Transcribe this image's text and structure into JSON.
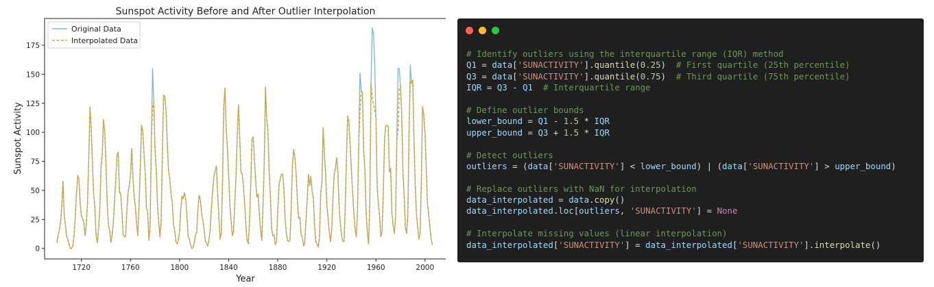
{
  "chart_data": {
    "type": "line",
    "title": "Sunspot Activity Before and After Outlier Interpolation",
    "xlabel": "Year",
    "ylabel": "Sunspot Activity",
    "xlim": [
      1690,
      2018
    ],
    "ylim": [
      -9,
      198
    ],
    "xticks": [
      1720,
      1760,
      1800,
      1840,
      1880,
      1920,
      1960,
      2000
    ],
    "yticks": [
      0,
      25,
      50,
      75,
      100,
      125,
      150,
      175
    ],
    "grid": false,
    "legend_position": "top-left",
    "x_start": 1700,
    "series": [
      {
        "name": "Original Data",
        "color": "#7fb3d5",
        "dash": "solid",
        "values": [
          5,
          11,
          16,
          23,
          36,
          58,
          29,
          20,
          10,
          8,
          3,
          0,
          0,
          2,
          11,
          27,
          47,
          63,
          60,
          39,
          28,
          26,
          22,
          11,
          21,
          40,
          78,
          122,
          103,
          73,
          47,
          35,
          11,
          5,
          16,
          34,
          70,
          81,
          111,
          101,
          73,
          40,
          20,
          16,
          5,
          11,
          22,
          40,
          60,
          81,
          83,
          48,
          48,
          31,
          12,
          10,
          10,
          32,
          48,
          54,
          63,
          86,
          61,
          45,
          36,
          21,
          11,
          38,
          70,
          106,
          101,
          82,
          66,
          35,
          31,
          7,
          20,
          93,
          155,
          126,
          85,
          68,
          38,
          23,
          10,
          24,
          83,
          132,
          131,
          118,
          90,
          67,
          60,
          47,
          41,
          21,
          16,
          6,
          4,
          7,
          15,
          34,
          45,
          43,
          48,
          42,
          28,
          10,
          8,
          3,
          0,
          1,
          5,
          12,
          14,
          35,
          46,
          41,
          30,
          24,
          16,
          7,
          4,
          2,
          8,
          17,
          36,
          50,
          62,
          67,
          71,
          48,
          28,
          8,
          13,
          57,
          122,
          138,
          103,
          86,
          63,
          37,
          24,
          11,
          15,
          40,
          62,
          98,
          124,
          96,
          66,
          64,
          54,
          39,
          21,
          7,
          4,
          23,
          55,
          94,
          96,
          77,
          59,
          44,
          47,
          30,
          16,
          7,
          37,
          74,
          139,
          111,
          102,
          66,
          45,
          17,
          11,
          12,
          3,
          6,
          32,
          54,
          60,
          64,
          64,
          52,
          25,
          13,
          7,
          6,
          7,
          36,
          73,
          85,
          78,
          64,
          42,
          26,
          27,
          12,
          10,
          2,
          5,
          24,
          42,
          64,
          54,
          62,
          49,
          44,
          19,
          6,
          4,
          1,
          10,
          47,
          57,
          104,
          81,
          64,
          38,
          26,
          14,
          6,
          17,
          44,
          64,
          69,
          78,
          65,
          36,
          21,
          11,
          6,
          6,
          36,
          80,
          114,
          109,
          89,
          68,
          48,
          31,
          16,
          10,
          33,
          92,
          151,
          136,
          134,
          84,
          69,
          31,
          14,
          4,
          38,
          142,
          190,
          185,
          159,
          112,
          54,
          38,
          28,
          10,
          15,
          47,
          94,
          106,
          106,
          105,
          66,
          69,
          31,
          20,
          13,
          27,
          93,
          155,
          155,
          140,
          116,
          66,
          46,
          18,
          13,
          29,
          100,
          158,
          142,
          145,
          94,
          54,
          30,
          18,
          8,
          13,
          57,
          122,
          115,
          99,
          68,
          38,
          29,
          18,
          8,
          3
        ]
      },
      {
        "name": "Interpolated Data",
        "color": "#e6a019",
        "dash": "dashed",
        "values": [
          5,
          11,
          16,
          23,
          36,
          58,
          29,
          20,
          10,
          8,
          3,
          0,
          0,
          2,
          11,
          27,
          47,
          63,
          60,
          39,
          28,
          26,
          22,
          11,
          21,
          40,
          78,
          122,
          103,
          73,
          47,
          35,
          11,
          5,
          16,
          34,
          70,
          81,
          111,
          101,
          73,
          40,
          20,
          16,
          5,
          11,
          22,
          40,
          60,
          81,
          83,
          48,
          48,
          31,
          12,
          10,
          10,
          32,
          48,
          54,
          63,
          86,
          61,
          45,
          36,
          21,
          11,
          38,
          70,
          106,
          101,
          82,
          66,
          35,
          31,
          7,
          20,
          93,
          121,
          126,
          85,
          68,
          38,
          23,
          10,
          24,
          83,
          132,
          131,
          118,
          90,
          67,
          60,
          47,
          41,
          21,
          16,
          6,
          4,
          7,
          15,
          34,
          45,
          43,
          48,
          42,
          28,
          10,
          8,
          3,
          0,
          1,
          5,
          12,
          14,
          35,
          46,
          41,
          30,
          24,
          16,
          7,
          4,
          2,
          8,
          17,
          36,
          50,
          62,
          67,
          71,
          48,
          28,
          8,
          13,
          57,
          122,
          138,
          103,
          86,
          63,
          37,
          24,
          11,
          15,
          40,
          62,
          98,
          124,
          96,
          66,
          64,
          54,
          39,
          21,
          7,
          4,
          23,
          55,
          94,
          96,
          77,
          59,
          44,
          47,
          30,
          16,
          7,
          37,
          74,
          139,
          111,
          102,
          66,
          45,
          17,
          11,
          12,
          3,
          6,
          32,
          54,
          60,
          64,
          64,
          52,
          25,
          13,
          7,
          6,
          7,
          36,
          73,
          85,
          78,
          64,
          42,
          26,
          27,
          12,
          10,
          2,
          5,
          24,
          42,
          64,
          54,
          62,
          49,
          44,
          19,
          6,
          4,
          1,
          10,
          47,
          57,
          104,
          81,
          64,
          38,
          26,
          14,
          6,
          17,
          44,
          64,
          69,
          78,
          65,
          36,
          21,
          11,
          6,
          6,
          36,
          80,
          114,
          109,
          89,
          68,
          48,
          31,
          16,
          10,
          33,
          92,
          118,
          136,
          134,
          84,
          69,
          31,
          14,
          4,
          38,
          142,
          128,
          125,
          120,
          112,
          54,
          38,
          28,
          10,
          15,
          47,
          94,
          106,
          106,
          105,
          66,
          69,
          31,
          20,
          13,
          27,
          93,
          102,
          138,
          140,
          116,
          66,
          46,
          18,
          13,
          29,
          100,
          144,
          142,
          145,
          94,
          54,
          30,
          18,
          8,
          13,
          57,
          122,
          115,
          99,
          68,
          38,
          29,
          18,
          8,
          3
        ]
      }
    ]
  },
  "code_panel": {
    "dot_colors": [
      "#ff5f56",
      "#ffbd2e",
      "#27c93f"
    ],
    "lines": [
      [
        [
          "comment",
          "# Identify outliers using the interquartile range (IQR) method"
        ]
      ],
      [
        [
          "var",
          "Q1"
        ],
        [
          "op",
          " = "
        ],
        [
          "var",
          "data"
        ],
        [
          "op",
          "["
        ],
        [
          "str",
          "'SUNACTIVITY'"
        ],
        [
          "op",
          "]."
        ],
        [
          "fn",
          "quantile"
        ],
        [
          "op",
          "("
        ],
        [
          "num",
          "0.25"
        ],
        [
          "op",
          ")  "
        ],
        [
          "comment",
          "# First quartile (25th percentile)"
        ]
      ],
      [
        [
          "var",
          "Q3"
        ],
        [
          "op",
          " = "
        ],
        [
          "var",
          "data"
        ],
        [
          "op",
          "["
        ],
        [
          "str",
          "'SUNACTIVITY'"
        ],
        [
          "op",
          "]."
        ],
        [
          "fn",
          "quantile"
        ],
        [
          "op",
          "("
        ],
        [
          "num",
          "0.75"
        ],
        [
          "op",
          ")  "
        ],
        [
          "comment",
          "# Third quartile (75th percentile)"
        ]
      ],
      [
        [
          "var",
          "IQR"
        ],
        [
          "op",
          " = "
        ],
        [
          "var",
          "Q3"
        ],
        [
          "op",
          " - "
        ],
        [
          "var",
          "Q1"
        ],
        [
          "op",
          "  "
        ],
        [
          "comment",
          "# Interquartile range"
        ]
      ],
      [],
      [
        [
          "comment",
          "# Define outlier bounds"
        ]
      ],
      [
        [
          "var",
          "lower_bound"
        ],
        [
          "op",
          " = "
        ],
        [
          "var",
          "Q1"
        ],
        [
          "op",
          " - "
        ],
        [
          "num",
          "1.5"
        ],
        [
          "op",
          " * "
        ],
        [
          "var",
          "IQR"
        ]
      ],
      [
        [
          "var",
          "upper_bound"
        ],
        [
          "op",
          " = "
        ],
        [
          "var",
          "Q3"
        ],
        [
          "op",
          " + "
        ],
        [
          "num",
          "1.5"
        ],
        [
          "op",
          " * "
        ],
        [
          "var",
          "IQR"
        ]
      ],
      [],
      [
        [
          "comment",
          "# Detect outliers"
        ]
      ],
      [
        [
          "var",
          "outliers"
        ],
        [
          "op",
          " = ("
        ],
        [
          "var",
          "data"
        ],
        [
          "op",
          "["
        ],
        [
          "str",
          "'SUNACTIVITY'"
        ],
        [
          "op",
          "] < "
        ],
        [
          "var",
          "lower_bound"
        ],
        [
          "op",
          ") | ("
        ],
        [
          "var",
          "data"
        ],
        [
          "op",
          "["
        ],
        [
          "str",
          "'SUNACTIVITY'"
        ],
        [
          "op",
          "] > "
        ],
        [
          "var",
          "upper_bound"
        ],
        [
          "op",
          ")"
        ]
      ],
      [],
      [
        [
          "comment",
          "# Replace outliers with NaN for interpolation"
        ]
      ],
      [
        [
          "var",
          "data_interpolated"
        ],
        [
          "op",
          " = "
        ],
        [
          "var",
          "data"
        ],
        [
          "op",
          "."
        ],
        [
          "fn",
          "copy"
        ],
        [
          "op",
          "()"
        ]
      ],
      [
        [
          "var",
          "data_interpolated"
        ],
        [
          "op",
          "."
        ],
        [
          "var",
          "loc"
        ],
        [
          "op",
          "["
        ],
        [
          "var",
          "outliers"
        ],
        [
          "op",
          ", "
        ],
        [
          "str",
          "'SUNACTIVITY'"
        ],
        [
          "op",
          "] = "
        ],
        [
          "kw",
          "None"
        ]
      ],
      [],
      [
        [
          "comment",
          "# Interpolate missing values (linear interpolation)"
        ]
      ],
      [
        [
          "var",
          "data_interpolated"
        ],
        [
          "op",
          "["
        ],
        [
          "str",
          "'SUNACTIVITY'"
        ],
        [
          "op",
          "] = "
        ],
        [
          "var",
          "data_interpolated"
        ],
        [
          "op",
          "["
        ],
        [
          "str",
          "'SUNACTIVITY'"
        ],
        [
          "op",
          "]."
        ],
        [
          "fn",
          "interpolate"
        ],
        [
          "op",
          "()"
        ]
      ]
    ]
  }
}
